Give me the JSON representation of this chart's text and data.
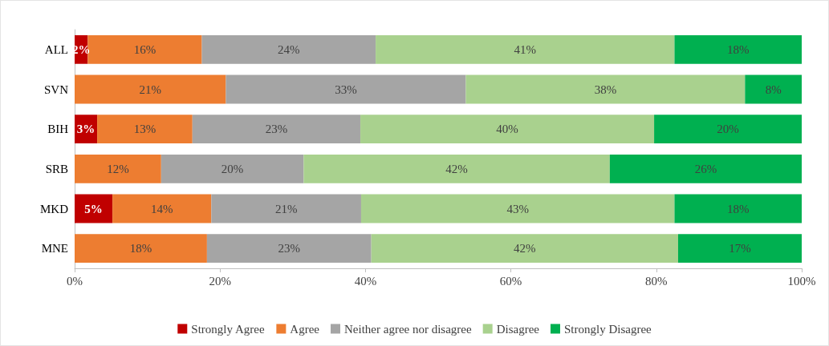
{
  "chart_data": {
    "type": "bar",
    "orientation": "horizontal",
    "stacked": true,
    "categories": [
      "ALL",
      "SVN",
      "BIH",
      "SRB",
      "MKD",
      "MNE"
    ],
    "series": [
      {
        "name": "Strongly Agree",
        "color": "#c00000",
        "values": [
          1.8,
          null,
          3.1,
          null,
          5.2,
          null
        ],
        "value_labels": [
          "2%",
          null,
          "3%",
          null,
          "5%",
          null
        ]
      },
      {
        "name": "Agree",
        "color": "#ed7d31",
        "values": [
          15.7,
          20.8,
          13.1,
          11.9,
          13.6,
          18.2
        ],
        "value_labels": [
          "16%",
          "21%",
          "13%",
          "12%",
          "14%",
          "18%"
        ]
      },
      {
        "name": "Neither agree nor disagree",
        "color": "#a5a5a5",
        "values": [
          23.9,
          33.0,
          23.1,
          19.6,
          20.6,
          22.6
        ],
        "value_labels": [
          "24%",
          "33%",
          "23%",
          "20%",
          "21%",
          "23%"
        ]
      },
      {
        "name": "Disagree",
        "color": "#a9d18e",
        "values": [
          41.1,
          38.4,
          40.4,
          42.1,
          43.1,
          42.2
        ],
        "value_labels": [
          "41%",
          "38%",
          "40%",
          "42%",
          "43%",
          "42%"
        ]
      },
      {
        "name": "Strongly Disagree",
        "color": "#00b050",
        "values": [
          17.5,
          7.8,
          20.3,
          26.4,
          17.5,
          17.0
        ],
        "value_labels": [
          "18%",
          "8%",
          "20%",
          "26%",
          "18%",
          "17%"
        ]
      }
    ],
    "xlim": [
      0,
      100
    ],
    "xticks": [
      {
        "value": 0,
        "label": "0%"
      },
      {
        "value": 20,
        "label": "20%"
      },
      {
        "value": 40,
        "label": "40%"
      },
      {
        "value": 60,
        "label": "60%"
      },
      {
        "value": 80,
        "label": "80%"
      },
      {
        "value": 100,
        "label": "100%"
      }
    ],
    "grid": false,
    "legend": "bottom"
  }
}
